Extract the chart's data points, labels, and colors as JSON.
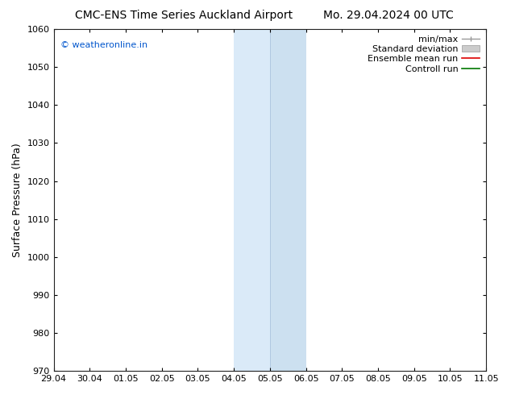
{
  "title_left": "CMC-ENS Time Series Auckland Airport",
  "title_right": "Mo. 29.04.2024 00 UTC",
  "ylabel": "Surface Pressure (hPa)",
  "ylim": [
    970,
    1060
  ],
  "yticks": [
    970,
    980,
    990,
    1000,
    1010,
    1020,
    1030,
    1040,
    1050,
    1060
  ],
  "xticks": [
    "29.04",
    "30.04",
    "01.05",
    "02.05",
    "03.05",
    "04.05",
    "05.05",
    "06.05",
    "07.05",
    "08.05",
    "09.05",
    "10.05",
    "11.05"
  ],
  "shade_left_color": "#daeaf8",
  "shade_right_color": "#cce0f0",
  "shade_right_edge_color": "#daeaf8",
  "background_color": "#ffffff",
  "watermark_text": "© weatheronline.in",
  "watermark_color": "#0055cc",
  "legend_labels": [
    "min/max",
    "Standard deviation",
    "Ensemble mean run",
    "Controll run"
  ],
  "minmax_line_color": "#999999",
  "stddev_fill_color": "#cccccc",
  "ensemble_line_color": "#dd0000",
  "control_line_color": "#007700",
  "title_fontsize": 10,
  "axis_label_fontsize": 9,
  "tick_fontsize": 8,
  "legend_fontsize": 8
}
